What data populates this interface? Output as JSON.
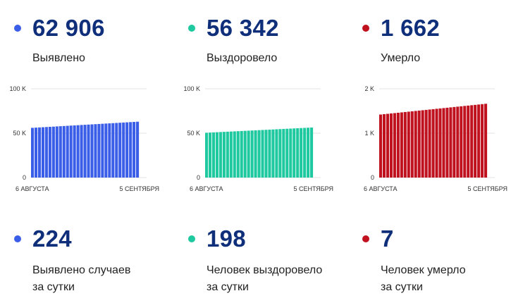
{
  "columns": [
    {
      "color": "#3a5ee8",
      "total": "62 906",
      "label": "Выявлено",
      "daily": "224",
      "daily_label_1": "Выявлено случаев",
      "daily_label_2": "за сутки"
    },
    {
      "color": "#1ec9a0",
      "total": "56 342",
      "label": "Выздоровело",
      "daily": "198",
      "daily_label_1": "Человек выздоровело",
      "daily_label_2": "за сутки"
    },
    {
      "color": "#c0111f",
      "total": "1 662",
      "label": "Умерло",
      "daily": "7",
      "daily_label_1": "Человек умерло",
      "daily_label_2": "за сутки"
    }
  ],
  "chart_data": [
    {
      "type": "bar",
      "x_start_label": "6 АВГУСТА",
      "x_end_label": "5 СЕНТЯБРЯ",
      "ytick_labels": [
        "0",
        "50 K",
        "100 K"
      ],
      "yticks": [
        0,
        50000,
        100000
      ],
      "ylim": [
        0,
        100000
      ],
      "bar_count": 31,
      "start_value": 56000,
      "end_value": 62906,
      "color": "#3a5ee8"
    },
    {
      "type": "bar",
      "x_start_label": "6 АВГУСТА",
      "x_end_label": "5 СЕНТЯБРЯ",
      "ytick_labels": [
        "0",
        "50 K",
        "100 K"
      ],
      "yticks": [
        0,
        50000,
        100000
      ],
      "ylim": [
        0,
        100000
      ],
      "bar_count": 31,
      "start_value": 50500,
      "end_value": 56342,
      "color": "#1ec9a0"
    },
    {
      "type": "bar",
      "x_start_label": "6 АВГУСТА",
      "x_end_label": "5 СЕНТЯБРЯ",
      "ytick_labels": [
        "0",
        "1 K",
        "2 K"
      ],
      "yticks": [
        0,
        1000,
        2000
      ],
      "ylim": [
        0,
        2000
      ],
      "bar_count": 31,
      "start_value": 1420,
      "end_value": 1662,
      "color": "#c0111f"
    }
  ]
}
